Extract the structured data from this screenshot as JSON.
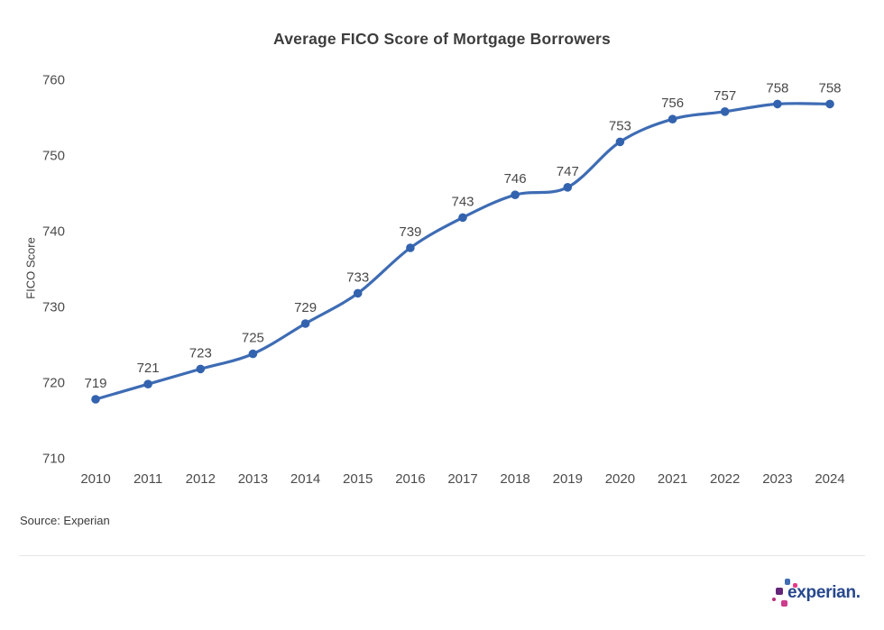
{
  "chart_data": {
    "type": "line",
    "title": "Average FICO Score of Mortgage Borrowers",
    "xlabel": "",
    "ylabel": "FICO Score",
    "categories": [
      "2010",
      "2011",
      "2012",
      "2013",
      "2014",
      "2015",
      "2016",
      "2017",
      "2018",
      "2019",
      "2020",
      "2021",
      "2022",
      "2023",
      "2024"
    ],
    "values": [
      719,
      721,
      723,
      725,
      729,
      733,
      739,
      743,
      746,
      747,
      753,
      756,
      757,
      758,
      758
    ],
    "yticks": [
      710,
      720,
      730,
      740,
      750,
      760
    ],
    "ylim": [
      710,
      762
    ],
    "grid": false,
    "legend": false,
    "data_labels": true,
    "line_color": "#3E6CB4",
    "point_color": "#3363AE",
    "data_label_color": "#484848",
    "tick_label_color": "#4c4c4c"
  },
  "footer": {
    "source": "Source: Experian",
    "logo_text": "experian.",
    "logo_colors": {
      "wordmark": "#26478D",
      "blue": "#406EB3",
      "pink": "#E63888",
      "purple": "#632678",
      "magenta": "#BA2F7D",
      "magenta2": "#CC3B8C"
    }
  }
}
